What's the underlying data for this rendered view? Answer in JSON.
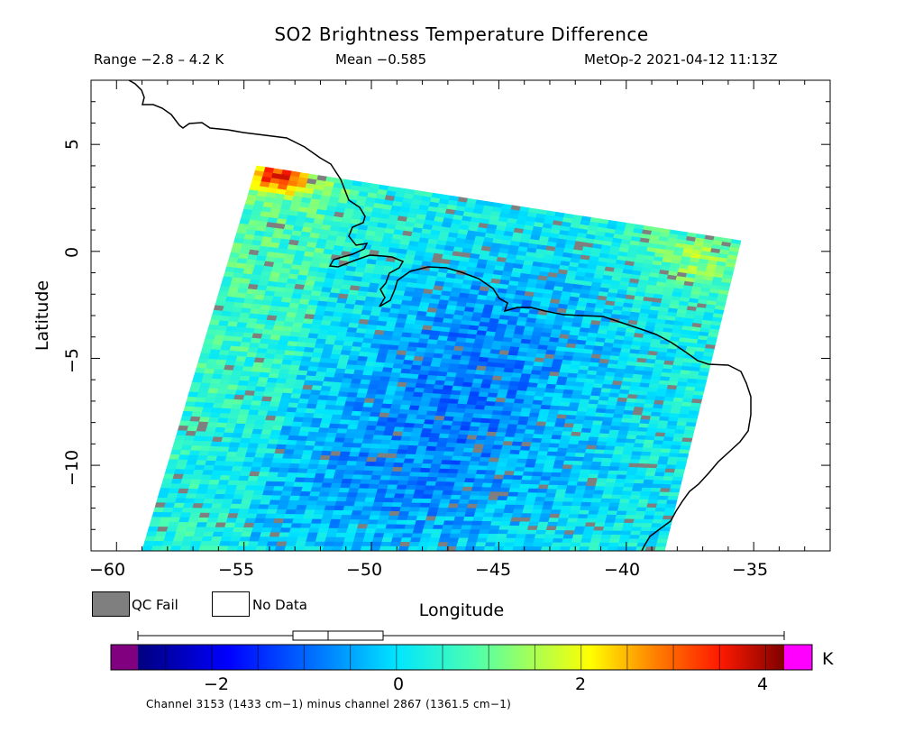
{
  "header": {
    "title": "SO2 Brightness Temperature Difference",
    "range": "Range −2.8 – 4.2 K",
    "mean": "Mean −0.585",
    "satellite_time": "MetOp-2 2021-04-12 11:13Z"
  },
  "map": {
    "xlabel": "Longitude",
    "ylabel": "Latitude",
    "lon_range": [
      -61,
      -32
    ],
    "lat_range": [
      -14,
      8
    ],
    "x_ticks": [
      "−60",
      "−55",
      "−50",
      "−45",
      "−40",
      "−35"
    ],
    "y_ticks": [
      "5",
      "0",
      "−5",
      "−10"
    ],
    "coastline": "black",
    "swath_corner_lonlat": [
      [
        -54.5,
        4.0
      ],
      [
        -35.5,
        0.5
      ],
      [
        -38.5,
        -14
      ],
      [
        -59,
        -14
      ]
    ]
  },
  "legend": {
    "qc_fail": "QC Fail",
    "no_data": "No Data",
    "qc_fail_color": "#7f7f7f",
    "no_data_color": "#ffffff"
  },
  "colorbar": {
    "units": "K",
    "ticks": [
      "−2",
      "0",
      "2",
      "4"
    ],
    "tick_values": [
      -2,
      0,
      2,
      4
    ],
    "min": -2.8,
    "max": 4.2,
    "boxplot": {
      "min": -2.8,
      "q1": -1.1,
      "median": -0.7,
      "q3": -0.1,
      "max": 4.2
    },
    "underflow_color": "#800080",
    "overflow_color": "#ff00ff",
    "channel_note": "Channel 3153 (1433 cm−1) minus channel 2867 (1361.5 cm−1)"
  }
}
